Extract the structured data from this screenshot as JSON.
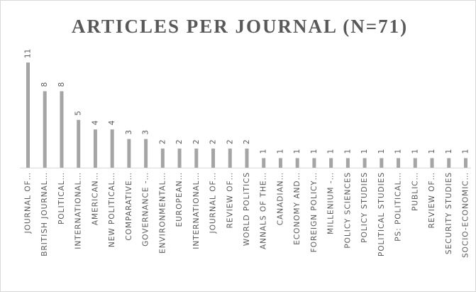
{
  "chart_data": {
    "type": "bar",
    "title": "ARTICLES PER JOURNAL (N=71)",
    "categories": [
      "JOURNAL OF…",
      "BRITISH JOURNAL…",
      "POLITICAL…",
      "INTERNATIONAL…",
      "AMERICAN…",
      "NEW POLITICAL…",
      "COMPARATIVE…",
      "GOVERNANCE -…",
      "ENVIRONMENTAL…",
      "EUROPEAN…",
      "INTERNATIONAL…",
      "JOURNAL OF…",
      "REVIEW OF…",
      "WORLD POLITICS",
      "ANNALS OF THE…",
      "CANADIAN…",
      "ECONOMY AND…",
      "FOREIGN POLICY…",
      "MILLENIUM -…",
      "POLICY SCIENCES",
      "POLICY STUDIES",
      "POLITICAL STUDIES",
      "PS: POLITICAL…",
      "PUBLIC…",
      "REVIEW OF…",
      "SECURITY STUDIES",
      "SOCIO-ECONOMIC…"
    ],
    "values": [
      11,
      8,
      8,
      5,
      4,
      4,
      3,
      3,
      2,
      2,
      2,
      2,
      2,
      2,
      1,
      1,
      1,
      1,
      1,
      1,
      1,
      1,
      1,
      1,
      1,
      1,
      1
    ],
    "color": "#a5a5a5"
  }
}
